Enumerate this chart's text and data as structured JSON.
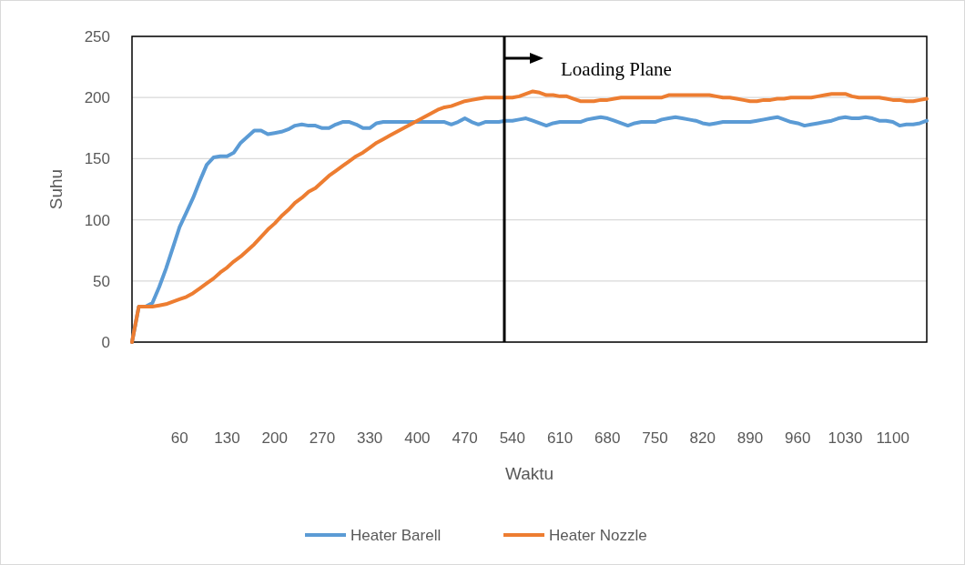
{
  "chart_data": {
    "type": "line",
    "xlabel": "Waktu",
    "ylabel": "Suhu",
    "categories": [
      null,
      null,
      null,
      null,
      null,
      null,
      null,
      "60",
      null,
      null,
      null,
      null,
      null,
      null,
      "130",
      null,
      null,
      null,
      null,
      null,
      null,
      "200",
      null,
      null,
      null,
      null,
      null,
      null,
      "270",
      null,
      null,
      null,
      null,
      null,
      null,
      "330",
      null,
      null,
      null,
      null,
      null,
      null,
      "400",
      null,
      null,
      null,
      null,
      null,
      null,
      "470",
      null,
      null,
      null,
      null,
      null,
      null,
      "540",
      null,
      null,
      null,
      null,
      null,
      null,
      "610",
      null,
      null,
      null,
      null,
      null,
      null,
      "680",
      null,
      null,
      null,
      null,
      null,
      null,
      "750",
      null,
      null,
      null,
      null,
      null,
      null,
      "820",
      null,
      null,
      null,
      null,
      null,
      null,
      "890",
      null,
      null,
      null,
      null,
      null,
      null,
      "960",
      null,
      null,
      null,
      null,
      null,
      null,
      "1030",
      null,
      null,
      null,
      null,
      null,
      null,
      "1100",
      null,
      null,
      null,
      null,
      null
    ],
    "series": [
      {
        "name": "Heater Barell",
        "color": "#5b9bd5",
        "values": [
          0,
          29,
          29,
          32,
          45,
          60,
          77,
          94,
          106,
          118,
          132,
          145,
          151,
          152,
          152,
          155,
          163,
          168,
          173,
          173,
          170,
          171,
          172,
          174,
          177,
          178,
          177,
          177,
          175,
          175,
          178,
          180,
          180,
          178,
          175,
          175,
          179,
          180,
          180,
          180,
          180,
          180,
          180,
          180,
          180,
          180,
          180,
          178,
          180,
          183,
          180,
          178,
          180,
          180,
          180,
          181,
          181,
          182,
          183,
          181,
          179,
          177,
          179,
          180,
          180,
          180,
          180,
          182,
          183,
          184,
          183,
          181,
          179,
          177,
          179,
          180,
          180,
          180,
          182,
          183,
          184,
          183,
          182,
          181,
          179,
          178,
          179,
          180,
          180,
          180,
          180,
          180,
          181,
          182,
          183,
          184,
          182,
          180,
          179,
          177,
          178,
          179,
          180,
          181,
          183,
          184,
          183,
          183,
          184,
          183,
          181,
          181,
          180,
          177,
          178,
          178,
          179,
          181
        ]
      },
      {
        "name": "Heater Nozzle",
        "color": "#ed7d31",
        "values": [
          0,
          29,
          29,
          29,
          30,
          31,
          33,
          35,
          37,
          40,
          44,
          48,
          52,
          57,
          61,
          66,
          70,
          75,
          80,
          86,
          92,
          97,
          103,
          108,
          114,
          118,
          123,
          126,
          131,
          136,
          140,
          144,
          148,
          152,
          155,
          159,
          163,
          166,
          169,
          172,
          175,
          178,
          181,
          184,
          187,
          190,
          192,
          193,
          195,
          197,
          198,
          199,
          200,
          200,
          200,
          200,
          200,
          201,
          203,
          205,
          204,
          202,
          202,
          201,
          201,
          199,
          197,
          197,
          197,
          198,
          198,
          199,
          200,
          200,
          200,
          200,
          200,
          200,
          200,
          202,
          202,
          202,
          202,
          202,
          202,
          202,
          201,
          200,
          200,
          199,
          198,
          197,
          197,
          198,
          198,
          199,
          199,
          200,
          200,
          200,
          200,
          201,
          202,
          203,
          203,
          203,
          201,
          200,
          200,
          200,
          200,
          199,
          198,
          198,
          197,
          197,
          198,
          199
        ]
      }
    ],
    "ylim": [
      0,
      250
    ],
    "yticks": [
      0,
      50,
      100,
      150,
      200,
      250
    ],
    "grid": "y",
    "legend": "bottom",
    "annotations": [
      "Loading Plane"
    ]
  }
}
